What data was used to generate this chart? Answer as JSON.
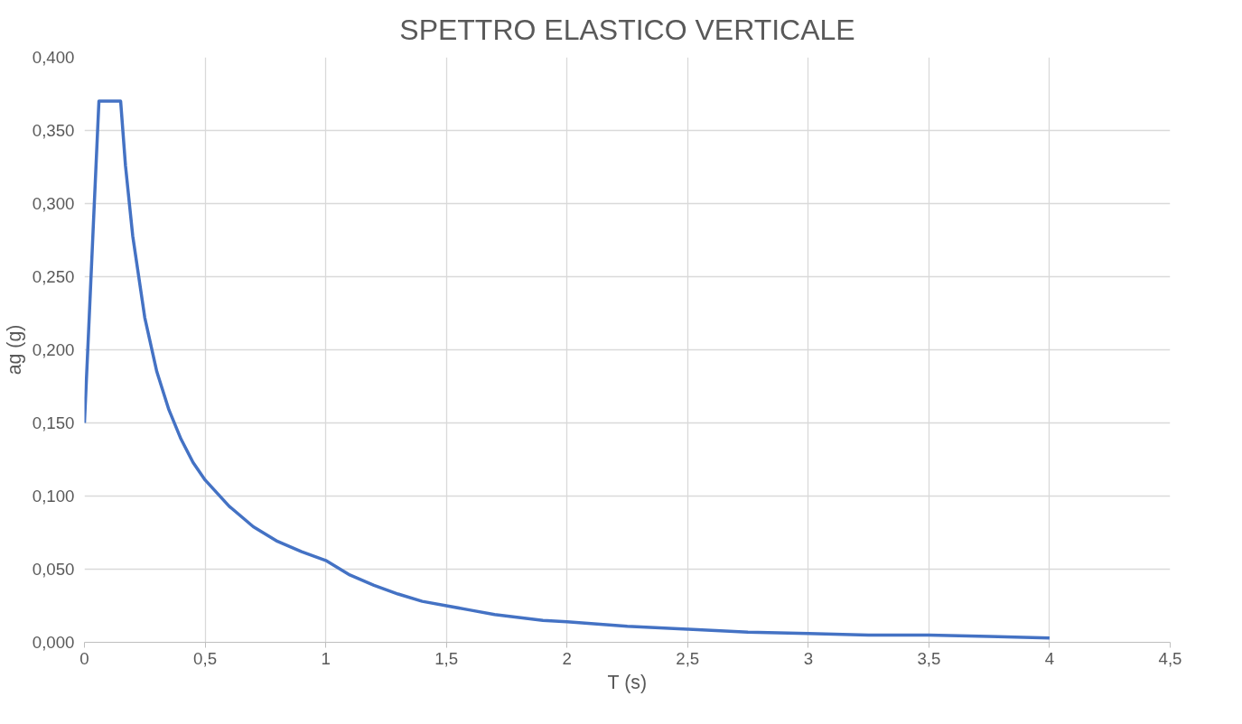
{
  "chart_data": {
    "type": "line",
    "title": "SPETTRO ELASTICO VERTICALE",
    "xlabel": "T (s)",
    "ylabel": "ag (g)",
    "x": [
      0,
      0.02,
      0.04,
      0.06,
      0.1,
      0.15,
      0.17,
      0.2,
      0.25,
      0.3,
      0.35,
      0.4,
      0.45,
      0.5,
      0.6,
      0.7,
      0.8,
      0.9,
      1.0,
      1.1,
      1.2,
      1.3,
      1.4,
      1.5,
      1.6,
      1.7,
      1.8,
      1.9,
      2.0,
      2.25,
      2.5,
      2.75,
      3.0,
      3.25,
      3.5,
      3.75,
      4.0
    ],
    "series": [
      {
        "color": "#4472c4",
        "values": [
          0.15,
          0.223,
          0.297,
          0.37,
          0.37,
          0.37,
          0.326,
          0.278,
          0.222,
          0.185,
          0.159,
          0.139,
          0.123,
          0.111,
          0.093,
          0.079,
          0.069,
          0.062,
          0.056,
          0.046,
          0.039,
          0.033,
          0.028,
          0.025,
          0.022,
          0.019,
          0.017,
          0.015,
          0.014,
          0.011,
          0.009,
          0.007,
          0.006,
          0.005,
          0.005,
          0.004,
          0.003
        ]
      }
    ],
    "xlim": [
      0,
      4.5
    ],
    "ylim": [
      0,
      0.4
    ],
    "xticks": [
      0,
      {
        "value": 0.5,
        "label": "0,5"
      },
      1,
      {
        "value": 1.5,
        "label": "1,5"
      },
      2,
      {
        "value": 2.5,
        "label": "2,5"
      },
      3,
      {
        "value": 3.5,
        "label": "3,5"
      },
      4,
      {
        "value": 4.5,
        "label": "4,5"
      }
    ],
    "yticks": [
      {
        "value": 0,
        "label": "0,000"
      },
      {
        "value": 0.05,
        "label": "0,050"
      },
      {
        "value": 0.1,
        "label": "0,100"
      },
      {
        "value": 0.15,
        "label": "0,150"
      },
      {
        "value": 0.2,
        "label": "0,200"
      },
      {
        "value": 0.25,
        "label": "0,250"
      },
      {
        "value": 0.3,
        "label": "0,300"
      },
      {
        "value": 0.35,
        "label": "0,350"
      },
      {
        "value": 0.4,
        "label": "0,400"
      }
    ],
    "grid": true,
    "marker": "none",
    "line_style": "solid"
  }
}
